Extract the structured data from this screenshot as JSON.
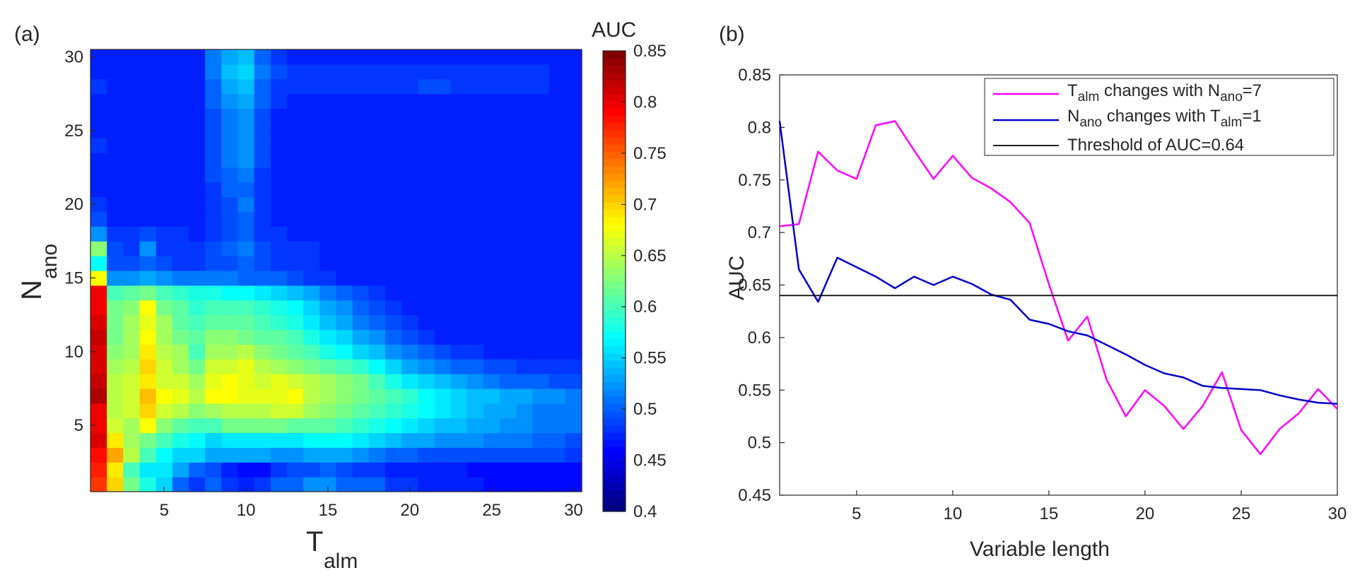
{
  "panel_a_label": "(a)",
  "panel_b_label": "(b)",
  "colors": {
    "pink": "#ff00ff",
    "blue": "#0000cd",
    "threshold": "#000000"
  },
  "chart_data": [
    {
      "type": "heatmap",
      "xlabel": {
        "main": "T",
        "sub": "alm"
      },
      "ylabel": {
        "main": "N",
        "sub": "ano"
      },
      "xlim": [
        0.5,
        30.5
      ],
      "ylim": [
        0.5,
        30.5
      ],
      "xticks": [
        "5",
        "10",
        "15",
        "20",
        "25",
        "30"
      ],
      "yticks": [
        "5",
        "10",
        "15",
        "20",
        "25",
        "30"
      ],
      "colorbar": {
        "title": "AUC",
        "range": [
          0.4,
          0.85
        ],
        "ticks": [
          "0.4",
          "0.45",
          "0.5",
          "0.55",
          "0.6",
          "0.65",
          "0.7",
          "0.75",
          "0.8",
          "0.85"
        ],
        "colormap": "jet"
      },
      "description_of_values": "AUC for each (T_alm, N_ano) pair; high (0.72-0.83) along T_alm=1 for N_ano<=14, warm band around N_ano 4-12 for T_alm 2-14, cyan fringe, otherwise ~0.45-0.52",
      "values": [
        [
          0.77,
          0.7,
          0.62,
          0.58,
          0.55,
          0.5,
          0.48,
          0.5,
          0.48,
          0.47,
          0.48,
          0.5,
          0.5,
          0.52,
          0.52,
          0.5,
          0.5,
          0.5,
          0.48,
          0.48,
          0.47,
          0.47,
          0.47,
          0.47,
          0.46,
          0.46,
          0.46,
          0.46,
          0.46,
          0.46
        ],
        [
          0.78,
          0.69,
          0.6,
          0.56,
          0.56,
          0.53,
          0.5,
          0.49,
          0.47,
          0.46,
          0.46,
          0.48,
          0.49,
          0.49,
          0.5,
          0.49,
          0.48,
          0.48,
          0.47,
          0.47,
          0.47,
          0.47,
          0.47,
          0.46,
          0.46,
          0.46,
          0.46,
          0.46,
          0.46,
          0.46
        ],
        [
          0.79,
          0.72,
          0.65,
          0.6,
          0.57,
          0.55,
          0.55,
          0.53,
          0.53,
          0.53,
          0.53,
          0.52,
          0.52,
          0.53,
          0.53,
          0.53,
          0.52,
          0.51,
          0.5,
          0.5,
          0.49,
          0.49,
          0.49,
          0.49,
          0.49,
          0.49,
          0.49,
          0.49,
          0.49,
          0.48
        ],
        [
          0.81,
          0.69,
          0.64,
          0.62,
          0.6,
          0.58,
          0.57,
          0.55,
          0.56,
          0.56,
          0.56,
          0.56,
          0.56,
          0.57,
          0.57,
          0.57,
          0.56,
          0.55,
          0.54,
          0.53,
          0.53,
          0.52,
          0.52,
          0.52,
          0.51,
          0.51,
          0.51,
          0.5,
          0.5,
          0.49
        ],
        [
          0.8,
          0.66,
          0.64,
          0.68,
          0.63,
          0.61,
          0.6,
          0.6,
          0.62,
          0.62,
          0.62,
          0.62,
          0.61,
          0.61,
          0.61,
          0.6,
          0.59,
          0.58,
          0.57,
          0.56,
          0.55,
          0.54,
          0.54,
          0.53,
          0.53,
          0.52,
          0.52,
          0.51,
          0.51,
          0.51
        ],
        [
          0.8,
          0.65,
          0.66,
          0.7,
          0.66,
          0.65,
          0.63,
          0.64,
          0.65,
          0.65,
          0.65,
          0.66,
          0.66,
          0.64,
          0.63,
          0.62,
          0.61,
          0.6,
          0.59,
          0.58,
          0.57,
          0.56,
          0.55,
          0.54,
          0.53,
          0.53,
          0.52,
          0.51,
          0.51,
          0.51
        ],
        [
          0.83,
          0.65,
          0.66,
          0.71,
          0.68,
          0.67,
          0.65,
          0.68,
          0.68,
          0.67,
          0.67,
          0.67,
          0.68,
          0.65,
          0.64,
          0.63,
          0.62,
          0.61,
          0.6,
          0.59,
          0.57,
          0.56,
          0.55,
          0.54,
          0.54,
          0.53,
          0.53,
          0.52,
          0.52,
          0.51
        ],
        [
          0.82,
          0.65,
          0.66,
          0.69,
          0.66,
          0.66,
          0.64,
          0.67,
          0.68,
          0.67,
          0.66,
          0.67,
          0.66,
          0.65,
          0.64,
          0.63,
          0.62,
          0.6,
          0.58,
          0.56,
          0.55,
          0.54,
          0.53,
          0.52,
          0.51,
          0.5,
          0.5,
          0.5,
          0.49,
          0.49
        ],
        [
          0.81,
          0.64,
          0.65,
          0.7,
          0.66,
          0.64,
          0.62,
          0.66,
          0.66,
          0.67,
          0.65,
          0.64,
          0.63,
          0.62,
          0.61,
          0.6,
          0.59,
          0.57,
          0.55,
          0.53,
          0.52,
          0.51,
          0.5,
          0.5,
          0.49,
          0.49,
          0.48,
          0.48,
          0.48,
          0.48
        ],
        [
          0.81,
          0.63,
          0.64,
          0.69,
          0.65,
          0.64,
          0.6,
          0.64,
          0.64,
          0.65,
          0.63,
          0.62,
          0.61,
          0.6,
          0.58,
          0.57,
          0.55,
          0.54,
          0.52,
          0.51,
          0.5,
          0.49,
          0.48,
          0.48,
          0.47,
          0.47,
          0.47,
          0.47,
          0.47,
          0.47
        ],
        [
          0.82,
          0.62,
          0.64,
          0.68,
          0.64,
          0.62,
          0.61,
          0.63,
          0.63,
          0.62,
          0.61,
          0.61,
          0.6,
          0.58,
          0.56,
          0.55,
          0.53,
          0.52,
          0.5,
          0.49,
          0.48,
          0.47,
          0.47,
          0.47,
          0.47,
          0.47,
          0.47,
          0.47,
          0.47,
          0.47
        ],
        [
          0.81,
          0.62,
          0.64,
          0.67,
          0.64,
          0.61,
          0.6,
          0.61,
          0.61,
          0.61,
          0.6,
          0.59,
          0.58,
          0.56,
          0.54,
          0.53,
          0.51,
          0.5,
          0.49,
          0.48,
          0.47,
          0.47,
          0.47,
          0.47,
          0.47,
          0.47,
          0.47,
          0.47,
          0.47,
          0.47
        ],
        [
          0.8,
          0.62,
          0.63,
          0.68,
          0.62,
          0.61,
          0.59,
          0.6,
          0.6,
          0.6,
          0.59,
          0.58,
          0.57,
          0.55,
          0.53,
          0.52,
          0.5,
          0.49,
          0.48,
          0.47,
          0.47,
          0.47,
          0.47,
          0.47,
          0.47,
          0.47,
          0.47,
          0.47,
          0.47,
          0.47
        ],
        [
          0.8,
          0.6,
          0.61,
          0.62,
          0.6,
          0.59,
          0.58,
          0.58,
          0.57,
          0.57,
          0.56,
          0.55,
          0.54,
          0.53,
          0.51,
          0.5,
          0.49,
          0.48,
          0.47,
          0.47,
          0.47,
          0.47,
          0.47,
          0.47,
          0.47,
          0.47,
          0.47,
          0.47,
          0.47,
          0.47
        ],
        [
          0.68,
          0.52,
          0.52,
          0.53,
          0.52,
          0.51,
          0.51,
          0.51,
          0.51,
          0.5,
          0.5,
          0.5,
          0.49,
          0.48,
          0.48,
          0.47,
          0.47,
          0.47,
          0.47,
          0.47,
          0.47,
          0.47,
          0.47,
          0.47,
          0.47,
          0.47,
          0.47,
          0.47,
          0.47,
          0.47
        ],
        [
          0.57,
          0.49,
          0.49,
          0.5,
          0.49,
          0.48,
          0.48,
          0.49,
          0.49,
          0.5,
          0.49,
          0.48,
          0.48,
          0.48,
          0.47,
          0.47,
          0.47,
          0.47,
          0.47,
          0.47,
          0.47,
          0.47,
          0.47,
          0.47,
          0.47,
          0.47,
          0.47,
          0.47,
          0.47,
          0.47
        ],
        [
          0.63,
          0.49,
          0.48,
          0.52,
          0.48,
          0.48,
          0.48,
          0.49,
          0.5,
          0.51,
          0.49,
          0.48,
          0.48,
          0.48,
          0.47,
          0.47,
          0.47,
          0.47,
          0.47,
          0.47,
          0.47,
          0.47,
          0.47,
          0.47,
          0.47,
          0.47,
          0.47,
          0.47,
          0.47,
          0.47
        ],
        [
          0.52,
          0.48,
          0.48,
          0.49,
          0.48,
          0.48,
          0.47,
          0.48,
          0.49,
          0.5,
          0.48,
          0.48,
          0.47,
          0.47,
          0.47,
          0.47,
          0.47,
          0.47,
          0.47,
          0.47,
          0.47,
          0.47,
          0.47,
          0.47,
          0.47,
          0.47,
          0.47,
          0.47,
          0.47,
          0.47
        ],
        [
          0.49,
          0.47,
          0.47,
          0.47,
          0.47,
          0.47,
          0.47,
          0.48,
          0.49,
          0.5,
          0.48,
          0.47,
          0.47,
          0.47,
          0.47,
          0.47,
          0.47,
          0.47,
          0.47,
          0.47,
          0.47,
          0.47,
          0.47,
          0.47,
          0.47,
          0.47,
          0.47,
          0.47,
          0.47,
          0.47
        ],
        [
          0.48,
          0.47,
          0.47,
          0.47,
          0.47,
          0.47,
          0.47,
          0.48,
          0.49,
          0.51,
          0.48,
          0.47,
          0.47,
          0.47,
          0.47,
          0.47,
          0.47,
          0.47,
          0.47,
          0.47,
          0.47,
          0.47,
          0.47,
          0.47,
          0.47,
          0.47,
          0.47,
          0.47,
          0.47,
          0.47
        ],
        [
          0.47,
          0.47,
          0.47,
          0.47,
          0.47,
          0.47,
          0.47,
          0.48,
          0.5,
          0.5,
          0.48,
          0.47,
          0.47,
          0.47,
          0.47,
          0.47,
          0.47,
          0.47,
          0.47,
          0.47,
          0.47,
          0.47,
          0.47,
          0.47,
          0.47,
          0.47,
          0.47,
          0.47,
          0.47,
          0.47
        ],
        [
          0.47,
          0.47,
          0.47,
          0.47,
          0.47,
          0.47,
          0.47,
          0.49,
          0.5,
          0.51,
          0.48,
          0.47,
          0.47,
          0.47,
          0.47,
          0.47,
          0.47,
          0.47,
          0.47,
          0.47,
          0.47,
          0.47,
          0.47,
          0.47,
          0.47,
          0.47,
          0.47,
          0.47,
          0.47,
          0.47
        ],
        [
          0.47,
          0.47,
          0.47,
          0.47,
          0.47,
          0.47,
          0.47,
          0.49,
          0.51,
          0.52,
          0.49,
          0.47,
          0.47,
          0.47,
          0.47,
          0.47,
          0.47,
          0.47,
          0.47,
          0.47,
          0.47,
          0.47,
          0.47,
          0.47,
          0.47,
          0.47,
          0.47,
          0.47,
          0.47,
          0.47
        ],
        [
          0.48,
          0.47,
          0.47,
          0.47,
          0.47,
          0.47,
          0.47,
          0.49,
          0.51,
          0.52,
          0.49,
          0.47,
          0.47,
          0.47,
          0.47,
          0.47,
          0.47,
          0.47,
          0.47,
          0.47,
          0.47,
          0.47,
          0.47,
          0.47,
          0.47,
          0.47,
          0.47,
          0.47,
          0.47,
          0.47
        ],
        [
          0.47,
          0.47,
          0.47,
          0.47,
          0.47,
          0.47,
          0.47,
          0.49,
          0.51,
          0.52,
          0.49,
          0.47,
          0.47,
          0.47,
          0.47,
          0.47,
          0.47,
          0.47,
          0.47,
          0.47,
          0.47,
          0.47,
          0.47,
          0.47,
          0.47,
          0.47,
          0.47,
          0.47,
          0.47,
          0.47
        ],
        [
          0.47,
          0.47,
          0.47,
          0.47,
          0.47,
          0.47,
          0.47,
          0.49,
          0.51,
          0.52,
          0.49,
          0.47,
          0.47,
          0.47,
          0.47,
          0.47,
          0.47,
          0.47,
          0.47,
          0.47,
          0.47,
          0.47,
          0.47,
          0.47,
          0.47,
          0.47,
          0.47,
          0.47,
          0.47,
          0.47
        ],
        [
          0.47,
          0.47,
          0.47,
          0.47,
          0.47,
          0.47,
          0.47,
          0.5,
          0.52,
          0.53,
          0.5,
          0.48,
          0.47,
          0.47,
          0.47,
          0.47,
          0.47,
          0.47,
          0.47,
          0.47,
          0.47,
          0.47,
          0.47,
          0.47,
          0.47,
          0.47,
          0.47,
          0.47,
          0.47,
          0.47
        ],
        [
          0.48,
          0.47,
          0.47,
          0.47,
          0.47,
          0.47,
          0.47,
          0.5,
          0.53,
          0.54,
          0.5,
          0.48,
          0.48,
          0.48,
          0.48,
          0.48,
          0.48,
          0.48,
          0.48,
          0.48,
          0.49,
          0.49,
          0.48,
          0.48,
          0.48,
          0.48,
          0.48,
          0.48,
          0.47,
          0.47
        ],
        [
          0.47,
          0.47,
          0.47,
          0.47,
          0.47,
          0.47,
          0.47,
          0.51,
          0.54,
          0.55,
          0.51,
          0.49,
          0.48,
          0.48,
          0.48,
          0.48,
          0.48,
          0.48,
          0.48,
          0.48,
          0.48,
          0.48,
          0.48,
          0.48,
          0.48,
          0.48,
          0.48,
          0.48,
          0.47,
          0.47
        ],
        [
          0.47,
          0.47,
          0.47,
          0.47,
          0.47,
          0.47,
          0.47,
          0.51,
          0.53,
          0.54,
          0.5,
          0.48,
          0.47,
          0.47,
          0.47,
          0.47,
          0.47,
          0.47,
          0.47,
          0.47,
          0.47,
          0.47,
          0.47,
          0.47,
          0.47,
          0.47,
          0.47,
          0.47,
          0.47,
          0.47
        ]
      ]
    },
    {
      "type": "line",
      "xlabel": "Variable length",
      "ylabel": "AUC",
      "xlim": [
        1,
        30
      ],
      "ylim": [
        0.45,
        0.85
      ],
      "xticks": [
        "5",
        "10",
        "15",
        "20",
        "25",
        "30"
      ],
      "yticks": [
        "0.45",
        "0.5",
        "0.55",
        "0.6",
        "0.65",
        "0.7",
        "0.75",
        "0.8",
        "0.85"
      ],
      "grid": false,
      "legend": "top-right",
      "x": [
        1,
        2,
        3,
        4,
        5,
        6,
        7,
        8,
        9,
        10,
        11,
        12,
        13,
        14,
        15,
        16,
        17,
        18,
        19,
        20,
        21,
        22,
        23,
        24,
        25,
        26,
        27,
        28,
        29,
        30
      ],
      "series": [
        {
          "name": "T_alm changes with N_ano=7",
          "legend_parts": [
            "T",
            "alm",
            " changes with N",
            "ano",
            "=7"
          ],
          "color": "#ff00ff",
          "values": [
            0.706,
            0.708,
            0.777,
            0.759,
            0.751,
            0.802,
            0.806,
            0.778,
            0.751,
            0.773,
            0.752,
            0.742,
            0.729,
            0.709,
            0.651,
            0.597,
            0.62,
            0.56,
            0.525,
            0.55,
            0.535,
            0.513,
            0.535,
            0.567,
            0.512,
            0.489,
            0.513,
            0.528,
            0.551,
            0.532
          ]
        },
        {
          "name": "N_ano changes with T_alm=1",
          "legend_parts": [
            "N",
            "ano",
            " changes with T",
            "alm",
            "=1"
          ],
          "color": "#0000cd",
          "values": [
            0.806,
            0.665,
            0.634,
            0.676,
            0.667,
            0.658,
            0.647,
            0.658,
            0.65,
            0.658,
            0.651,
            0.641,
            0.636,
            0.617,
            0.613,
            0.606,
            0.602,
            0.593,
            0.584,
            0.574,
            0.566,
            0.562,
            0.554,
            0.552,
            0.551,
            0.55,
            0.545,
            0.541,
            0.538,
            0.537
          ]
        },
        {
          "name": "Threshold of AUC=0.64",
          "legend_parts": [
            "Threshold of AUC=0.64"
          ],
          "color": "#000000",
          "constant": 0.64
        }
      ]
    }
  ]
}
